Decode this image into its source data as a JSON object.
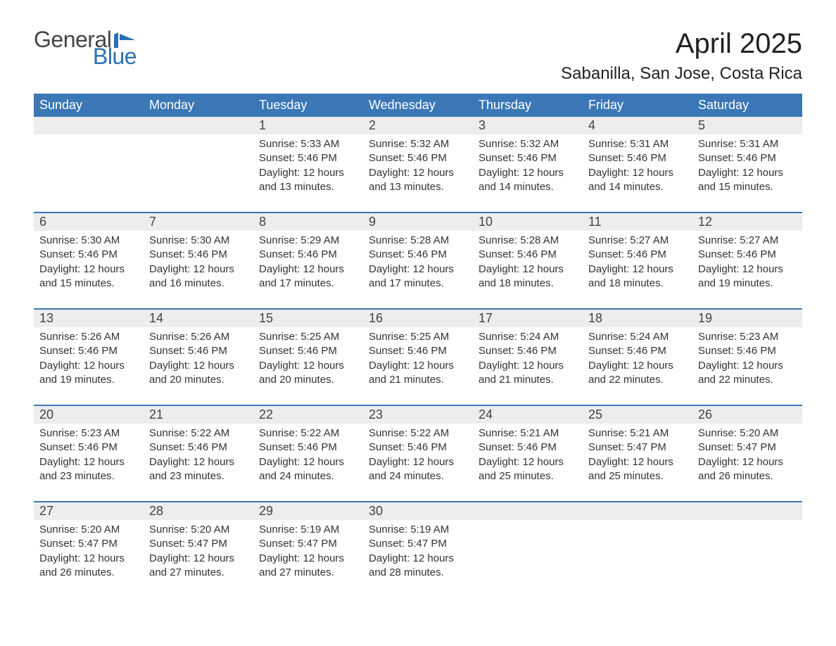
{
  "logo": {
    "word1": "General",
    "word2": "Blue",
    "flag_color": "#2b6fb3"
  },
  "title": "April 2025",
  "subtitle": "Sabanilla, San Jose, Costa Rica",
  "colors": {
    "header_bg": "#3b77b7",
    "header_text": "#ffffff",
    "strip_bg": "#ededed",
    "rule": "#3b77b7",
    "body_text": "#333333"
  },
  "font": {
    "family": "Arial",
    "title_pt": 40,
    "subtitle_pt": 24,
    "weekday_pt": 18,
    "daynum_pt": 18,
    "body_pt": 15
  },
  "weekdays": [
    "Sunday",
    "Monday",
    "Tuesday",
    "Wednesday",
    "Thursday",
    "Friday",
    "Saturday"
  ],
  "weeks": [
    [
      {
        "day": "",
        "sunrise": "",
        "sunset": "",
        "daylightA": "",
        "daylightB": ""
      },
      {
        "day": "",
        "sunrise": "",
        "sunset": "",
        "daylightA": "",
        "daylightB": ""
      },
      {
        "day": "1",
        "sunrise": "Sunrise: 5:33 AM",
        "sunset": "Sunset: 5:46 PM",
        "daylightA": "Daylight: 12 hours",
        "daylightB": "and 13 minutes."
      },
      {
        "day": "2",
        "sunrise": "Sunrise: 5:32 AM",
        "sunset": "Sunset: 5:46 PM",
        "daylightA": "Daylight: 12 hours",
        "daylightB": "and 13 minutes."
      },
      {
        "day": "3",
        "sunrise": "Sunrise: 5:32 AM",
        "sunset": "Sunset: 5:46 PM",
        "daylightA": "Daylight: 12 hours",
        "daylightB": "and 14 minutes."
      },
      {
        "day": "4",
        "sunrise": "Sunrise: 5:31 AM",
        "sunset": "Sunset: 5:46 PM",
        "daylightA": "Daylight: 12 hours",
        "daylightB": "and 14 minutes."
      },
      {
        "day": "5",
        "sunrise": "Sunrise: 5:31 AM",
        "sunset": "Sunset: 5:46 PM",
        "daylightA": "Daylight: 12 hours",
        "daylightB": "and 15 minutes."
      }
    ],
    [
      {
        "day": "6",
        "sunrise": "Sunrise: 5:30 AM",
        "sunset": "Sunset: 5:46 PM",
        "daylightA": "Daylight: 12 hours",
        "daylightB": "and 15 minutes."
      },
      {
        "day": "7",
        "sunrise": "Sunrise: 5:30 AM",
        "sunset": "Sunset: 5:46 PM",
        "daylightA": "Daylight: 12 hours",
        "daylightB": "and 16 minutes."
      },
      {
        "day": "8",
        "sunrise": "Sunrise: 5:29 AM",
        "sunset": "Sunset: 5:46 PM",
        "daylightA": "Daylight: 12 hours",
        "daylightB": "and 17 minutes."
      },
      {
        "day": "9",
        "sunrise": "Sunrise: 5:28 AM",
        "sunset": "Sunset: 5:46 PM",
        "daylightA": "Daylight: 12 hours",
        "daylightB": "and 17 minutes."
      },
      {
        "day": "10",
        "sunrise": "Sunrise: 5:28 AM",
        "sunset": "Sunset: 5:46 PM",
        "daylightA": "Daylight: 12 hours",
        "daylightB": "and 18 minutes."
      },
      {
        "day": "11",
        "sunrise": "Sunrise: 5:27 AM",
        "sunset": "Sunset: 5:46 PM",
        "daylightA": "Daylight: 12 hours",
        "daylightB": "and 18 minutes."
      },
      {
        "day": "12",
        "sunrise": "Sunrise: 5:27 AM",
        "sunset": "Sunset: 5:46 PM",
        "daylightA": "Daylight: 12 hours",
        "daylightB": "and 19 minutes."
      }
    ],
    [
      {
        "day": "13",
        "sunrise": "Sunrise: 5:26 AM",
        "sunset": "Sunset: 5:46 PM",
        "daylightA": "Daylight: 12 hours",
        "daylightB": "and 19 minutes."
      },
      {
        "day": "14",
        "sunrise": "Sunrise: 5:26 AM",
        "sunset": "Sunset: 5:46 PM",
        "daylightA": "Daylight: 12 hours",
        "daylightB": "and 20 minutes."
      },
      {
        "day": "15",
        "sunrise": "Sunrise: 5:25 AM",
        "sunset": "Sunset: 5:46 PM",
        "daylightA": "Daylight: 12 hours",
        "daylightB": "and 20 minutes."
      },
      {
        "day": "16",
        "sunrise": "Sunrise: 5:25 AM",
        "sunset": "Sunset: 5:46 PM",
        "daylightA": "Daylight: 12 hours",
        "daylightB": "and 21 minutes."
      },
      {
        "day": "17",
        "sunrise": "Sunrise: 5:24 AM",
        "sunset": "Sunset: 5:46 PM",
        "daylightA": "Daylight: 12 hours",
        "daylightB": "and 21 minutes."
      },
      {
        "day": "18",
        "sunrise": "Sunrise: 5:24 AM",
        "sunset": "Sunset: 5:46 PM",
        "daylightA": "Daylight: 12 hours",
        "daylightB": "and 22 minutes."
      },
      {
        "day": "19",
        "sunrise": "Sunrise: 5:23 AM",
        "sunset": "Sunset: 5:46 PM",
        "daylightA": "Daylight: 12 hours",
        "daylightB": "and 22 minutes."
      }
    ],
    [
      {
        "day": "20",
        "sunrise": "Sunrise: 5:23 AM",
        "sunset": "Sunset: 5:46 PM",
        "daylightA": "Daylight: 12 hours",
        "daylightB": "and 23 minutes."
      },
      {
        "day": "21",
        "sunrise": "Sunrise: 5:22 AM",
        "sunset": "Sunset: 5:46 PM",
        "daylightA": "Daylight: 12 hours",
        "daylightB": "and 23 minutes."
      },
      {
        "day": "22",
        "sunrise": "Sunrise: 5:22 AM",
        "sunset": "Sunset: 5:46 PM",
        "daylightA": "Daylight: 12 hours",
        "daylightB": "and 24 minutes."
      },
      {
        "day": "23",
        "sunrise": "Sunrise: 5:22 AM",
        "sunset": "Sunset: 5:46 PM",
        "daylightA": "Daylight: 12 hours",
        "daylightB": "and 24 minutes."
      },
      {
        "day": "24",
        "sunrise": "Sunrise: 5:21 AM",
        "sunset": "Sunset: 5:46 PM",
        "daylightA": "Daylight: 12 hours",
        "daylightB": "and 25 minutes."
      },
      {
        "day": "25",
        "sunrise": "Sunrise: 5:21 AM",
        "sunset": "Sunset: 5:47 PM",
        "daylightA": "Daylight: 12 hours",
        "daylightB": "and 25 minutes."
      },
      {
        "day": "26",
        "sunrise": "Sunrise: 5:20 AM",
        "sunset": "Sunset: 5:47 PM",
        "daylightA": "Daylight: 12 hours",
        "daylightB": "and 26 minutes."
      }
    ],
    [
      {
        "day": "27",
        "sunrise": "Sunrise: 5:20 AM",
        "sunset": "Sunset: 5:47 PM",
        "daylightA": "Daylight: 12 hours",
        "daylightB": "and 26 minutes."
      },
      {
        "day": "28",
        "sunrise": "Sunrise: 5:20 AM",
        "sunset": "Sunset: 5:47 PM",
        "daylightA": "Daylight: 12 hours",
        "daylightB": "and 27 minutes."
      },
      {
        "day": "29",
        "sunrise": "Sunrise: 5:19 AM",
        "sunset": "Sunset: 5:47 PM",
        "daylightA": "Daylight: 12 hours",
        "daylightB": "and 27 minutes."
      },
      {
        "day": "30",
        "sunrise": "Sunrise: 5:19 AM",
        "sunset": "Sunset: 5:47 PM",
        "daylightA": "Daylight: 12 hours",
        "daylightB": "and 28 minutes."
      },
      {
        "day": "",
        "sunrise": "",
        "sunset": "",
        "daylightA": "",
        "daylightB": ""
      },
      {
        "day": "",
        "sunrise": "",
        "sunset": "",
        "daylightA": "",
        "daylightB": ""
      },
      {
        "day": "",
        "sunrise": "",
        "sunset": "",
        "daylightA": "",
        "daylightB": ""
      }
    ]
  ]
}
